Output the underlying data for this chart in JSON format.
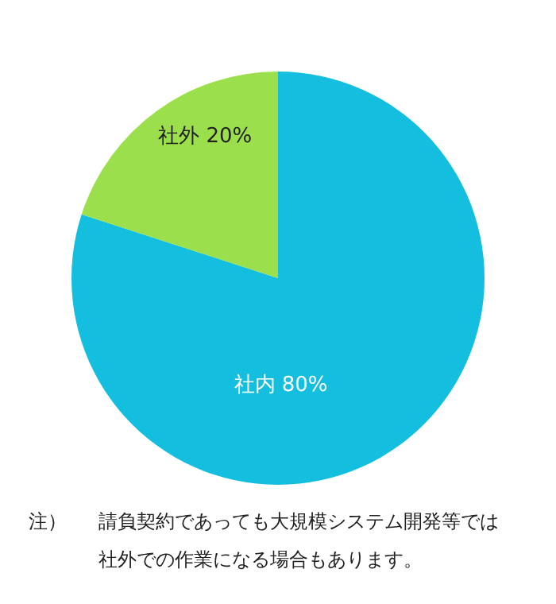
{
  "chart_data": {
    "type": "pie",
    "categories": [
      "社内",
      "社外"
    ],
    "values": [
      80,
      20
    ],
    "colors": [
      "#13bede",
      "#9be04c"
    ],
    "value_labels": [
      "80%",
      "20%"
    ],
    "annotations": [
      "注）",
      "請負契約であっても大規模システム開発等では社外での作業になる場合もあります。"
    ]
  }
}
